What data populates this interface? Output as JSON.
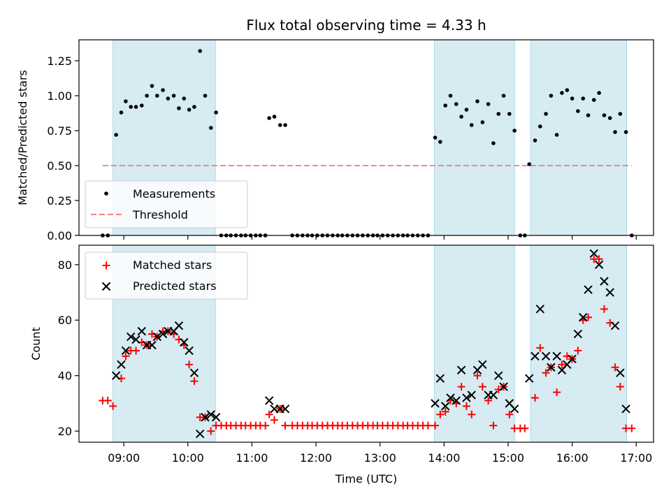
{
  "chart_data": [
    {
      "type": "scatter",
      "title": "Flux total observing time = 4.33 h",
      "xlabel": "",
      "ylabel": "Matched/Predicted stars",
      "ylim": [
        0,
        1.4
      ],
      "yticks": [
        "0.00",
        "0.25",
        "0.50",
        "0.75",
        "1.00",
        "1.25"
      ],
      "legend_position": "lower-left",
      "shaded_intervals": [
        [
          8.83,
          10.43
        ],
        [
          13.85,
          15.1
        ],
        [
          15.35,
          16.85
        ]
      ],
      "series": [
        {
          "name": "Measurements",
          "marker": "dot",
          "color": "#000000",
          "points": [
            [
              8.67,
              0.0
            ],
            [
              8.75,
              0.0
            ],
            [
              8.88,
              0.72
            ],
            [
              8.96,
              0.88
            ],
            [
              9.03,
              0.96
            ],
            [
              9.11,
              0.92
            ],
            [
              9.19,
              0.92
            ],
            [
              9.28,
              0.93
            ],
            [
              9.36,
              1.0
            ],
            [
              9.44,
              1.07
            ],
            [
              9.52,
              1.0
            ],
            [
              9.61,
              1.04
            ],
            [
              9.69,
              0.98
            ],
            [
              9.78,
              1.0
            ],
            [
              9.86,
              0.91
            ],
            [
              9.94,
              0.98
            ],
            [
              10.02,
              0.9
            ],
            [
              10.1,
              0.92
            ],
            [
              10.19,
              1.32
            ],
            [
              10.27,
              1.0
            ],
            [
              10.36,
              0.77
            ],
            [
              10.44,
              0.88
            ],
            [
              10.52,
              0.0
            ],
            [
              10.6,
              0.0
            ],
            [
              10.67,
              0.0
            ],
            [
              10.75,
              0.0
            ],
            [
              10.83,
              0.0
            ],
            [
              10.9,
              0.0
            ],
            [
              10.98,
              0.0
            ],
            [
              11.06,
              0.0
            ],
            [
              11.13,
              0.0
            ],
            [
              11.21,
              0.0
            ],
            [
              11.27,
              0.84
            ],
            [
              11.35,
              0.85
            ],
            [
              11.44,
              0.79
            ],
            [
              11.52,
              0.79
            ],
            [
              11.63,
              0.0
            ],
            [
              11.71,
              0.0
            ],
            [
              11.79,
              0.0
            ],
            [
              11.87,
              0.0
            ],
            [
              11.94,
              0.0
            ],
            [
              12.02,
              0.0
            ],
            [
              12.1,
              0.0
            ],
            [
              12.18,
              0.0
            ],
            [
              12.26,
              0.0
            ],
            [
              12.34,
              0.0
            ],
            [
              12.41,
              0.0
            ],
            [
              12.49,
              0.0
            ],
            [
              12.57,
              0.0
            ],
            [
              12.65,
              0.0
            ],
            [
              12.73,
              0.0
            ],
            [
              12.81,
              0.0
            ],
            [
              12.89,
              0.0
            ],
            [
              12.96,
              0.0
            ],
            [
              13.04,
              0.0
            ],
            [
              13.12,
              0.0
            ],
            [
              13.2,
              0.0
            ],
            [
              13.28,
              0.0
            ],
            [
              13.36,
              0.0
            ],
            [
              13.43,
              0.0
            ],
            [
              13.51,
              0.0
            ],
            [
              13.59,
              0.0
            ],
            [
              13.67,
              0.0
            ],
            [
              13.75,
              0.0
            ],
            [
              13.86,
              0.7
            ],
            [
              13.94,
              0.67
            ],
            [
              14.02,
              0.93
            ],
            [
              14.1,
              1.0
            ],
            [
              14.19,
              0.94
            ],
            [
              14.27,
              0.85
            ],
            [
              14.35,
              0.9
            ],
            [
              14.43,
              0.79
            ],
            [
              14.52,
              0.96
            ],
            [
              14.6,
              0.81
            ],
            [
              14.69,
              0.94
            ],
            [
              14.77,
              0.66
            ],
            [
              14.85,
              0.87
            ],
            [
              14.93,
              1.0
            ],
            [
              15.02,
              0.87
            ],
            [
              15.1,
              0.75
            ],
            [
              15.19,
              0.0
            ],
            [
              15.26,
              0.0
            ],
            [
              15.33,
              0.51
            ],
            [
              15.42,
              0.68
            ],
            [
              15.5,
              0.78
            ],
            [
              15.59,
              0.87
            ],
            [
              15.67,
              1.0
            ],
            [
              15.76,
              0.72
            ],
            [
              15.84,
              1.02
            ],
            [
              15.92,
              1.04
            ],
            [
              16.0,
              0.98
            ],
            [
              16.09,
              0.89
            ],
            [
              16.17,
              0.98
            ],
            [
              16.25,
              0.86
            ],
            [
              16.34,
              0.97
            ],
            [
              16.42,
              1.02
            ],
            [
              16.5,
              0.86
            ],
            [
              16.59,
              0.84
            ],
            [
              16.67,
              0.74
            ],
            [
              16.75,
              0.87
            ],
            [
              16.84,
              0.74
            ],
            [
              16.93,
              0.0
            ]
          ]
        },
        {
          "name": "Threshold",
          "marker": "dashed-line",
          "color": "#f08080",
          "points": [
            [
              8.67,
              0.5
            ],
            [
              16.93,
              0.5
            ]
          ]
        }
      ]
    },
    {
      "type": "scatter",
      "title": "",
      "xlabel": "Time (UTC)",
      "ylabel": "Count",
      "ylim": [
        16,
        87
      ],
      "yticks": [
        "20",
        "40",
        "60",
        "80"
      ],
      "xticks": [
        "09:00",
        "10:00",
        "11:00",
        "12:00",
        "13:00",
        "14:00",
        "15:00",
        "16:00",
        "17:00"
      ],
      "xlim": [
        8.3,
        17.27
      ],
      "legend_position": "upper-left",
      "shaded_intervals": [
        [
          8.83,
          10.43
        ],
        [
          13.85,
          15.1
        ],
        [
          15.35,
          16.85
        ]
      ],
      "series": [
        {
          "name": "Matched stars",
          "marker": "plus",
          "color": "#ff0000",
          "points": [
            [
              8.67,
              31
            ],
            [
              8.75,
              31
            ],
            [
              8.83,
              29
            ],
            [
              8.96,
              39
            ],
            [
              9.03,
              47
            ],
            [
              9.11,
              49
            ],
            [
              9.19,
              49
            ],
            [
              9.28,
              52
            ],
            [
              9.36,
              51
            ],
            [
              9.44,
              55
            ],
            [
              9.52,
              54
            ],
            [
              9.61,
              56
            ],
            [
              9.69,
              56
            ],
            [
              9.78,
              55
            ],
            [
              9.86,
              53
            ],
            [
              9.94,
              51
            ],
            [
              10.02,
              44
            ],
            [
              10.1,
              38
            ],
            [
              10.19,
              25
            ],
            [
              10.27,
              25
            ],
            [
              10.36,
              20
            ],
            [
              10.44,
              22
            ],
            [
              10.52,
              22
            ],
            [
              10.6,
              22
            ],
            [
              10.67,
              22
            ],
            [
              10.75,
              22
            ],
            [
              10.83,
              22
            ],
            [
              10.9,
              22
            ],
            [
              10.98,
              22
            ],
            [
              11.06,
              22
            ],
            [
              11.13,
              22
            ],
            [
              11.21,
              22
            ],
            [
              11.27,
              26
            ],
            [
              11.35,
              24
            ],
            [
              11.44,
              28
            ],
            [
              11.52,
              22
            ],
            [
              11.63,
              22
            ],
            [
              11.71,
              22
            ],
            [
              11.79,
              22
            ],
            [
              11.87,
              22
            ],
            [
              11.94,
              22
            ],
            [
              12.02,
              22
            ],
            [
              12.1,
              22
            ],
            [
              12.18,
              22
            ],
            [
              12.26,
              22
            ],
            [
              12.34,
              22
            ],
            [
              12.41,
              22
            ],
            [
              12.49,
              22
            ],
            [
              12.57,
              22
            ],
            [
              12.65,
              22
            ],
            [
              12.73,
              22
            ],
            [
              12.81,
              22
            ],
            [
              12.89,
              22
            ],
            [
              12.96,
              22
            ],
            [
              13.04,
              22
            ],
            [
              13.12,
              22
            ],
            [
              13.2,
              22
            ],
            [
              13.28,
              22
            ],
            [
              13.36,
              22
            ],
            [
              13.43,
              22
            ],
            [
              13.51,
              22
            ],
            [
              13.59,
              22
            ],
            [
              13.67,
              22
            ],
            [
              13.75,
              22
            ],
            [
              13.86,
              22
            ],
            [
              13.94,
              26
            ],
            [
              14.02,
              27
            ],
            [
              14.1,
              31
            ],
            [
              14.19,
              30
            ],
            [
              14.27,
              36
            ],
            [
              14.35,
              29
            ],
            [
              14.43,
              26
            ],
            [
              14.52,
              40
            ],
            [
              14.6,
              36
            ],
            [
              14.69,
              31
            ],
            [
              14.77,
              22
            ],
            [
              14.85,
              35
            ],
            [
              14.93,
              36
            ],
            [
              15.02,
              26
            ],
            [
              15.1,
              21
            ],
            [
              15.19,
              21
            ],
            [
              15.26,
              21
            ],
            [
              15.42,
              32
            ],
            [
              15.5,
              50
            ],
            [
              15.59,
              41
            ],
            [
              15.67,
              43
            ],
            [
              15.76,
              34
            ],
            [
              15.84,
              44
            ],
            [
              15.92,
              47
            ],
            [
              16.0,
              46
            ],
            [
              16.09,
              49
            ],
            [
              16.17,
              60
            ],
            [
              16.25,
              61
            ],
            [
              16.34,
              82
            ],
            [
              16.42,
              82
            ],
            [
              16.5,
              64
            ],
            [
              16.59,
              59
            ],
            [
              16.67,
              43
            ],
            [
              16.75,
              36
            ],
            [
              16.84,
              21
            ],
            [
              16.93,
              21
            ]
          ]
        },
        {
          "name": "Predicted stars",
          "marker": "x",
          "color": "#000000",
          "points": [
            [
              8.88,
              40
            ],
            [
              8.96,
              44
            ],
            [
              9.03,
              49
            ],
            [
              9.11,
              54
            ],
            [
              9.19,
              53
            ],
            [
              9.28,
              56
            ],
            [
              9.36,
              51
            ],
            [
              9.44,
              51
            ],
            [
              9.52,
              54
            ],
            [
              9.61,
              55
            ],
            [
              9.69,
              56
            ],
            [
              9.78,
              56
            ],
            [
              9.86,
              58
            ],
            [
              9.94,
              52
            ],
            [
              10.02,
              49
            ],
            [
              10.1,
              41
            ],
            [
              10.19,
              19
            ],
            [
              10.27,
              25
            ],
            [
              10.36,
              26
            ],
            [
              10.44,
              25
            ],
            [
              11.27,
              31
            ],
            [
              11.35,
              28
            ],
            [
              11.44,
              28
            ],
            [
              11.52,
              28
            ],
            [
              13.86,
              30
            ],
            [
              13.94,
              39
            ],
            [
              14.02,
              29
            ],
            [
              14.1,
              32
            ],
            [
              14.19,
              31
            ],
            [
              14.27,
              42
            ],
            [
              14.35,
              32
            ],
            [
              14.43,
              33
            ],
            [
              14.52,
              42
            ],
            [
              14.6,
              44
            ],
            [
              14.69,
              33
            ],
            [
              14.77,
              33
            ],
            [
              14.85,
              40
            ],
            [
              14.93,
              36
            ],
            [
              15.02,
              30
            ],
            [
              15.1,
              28
            ],
            [
              15.33,
              39
            ],
            [
              15.42,
              47
            ],
            [
              15.5,
              64
            ],
            [
              15.59,
              47
            ],
            [
              15.67,
              43
            ],
            [
              15.76,
              47
            ],
            [
              15.84,
              42
            ],
            [
              15.92,
              44
            ],
            [
              16.0,
              46
            ],
            [
              16.09,
              55
            ],
            [
              16.17,
              61
            ],
            [
              16.25,
              71
            ],
            [
              16.34,
              84
            ],
            [
              16.42,
              80
            ],
            [
              16.5,
              74
            ],
            [
              16.59,
              70
            ],
            [
              16.67,
              58
            ],
            [
              16.75,
              41
            ],
            [
              16.84,
              28
            ]
          ]
        }
      ]
    }
  ]
}
